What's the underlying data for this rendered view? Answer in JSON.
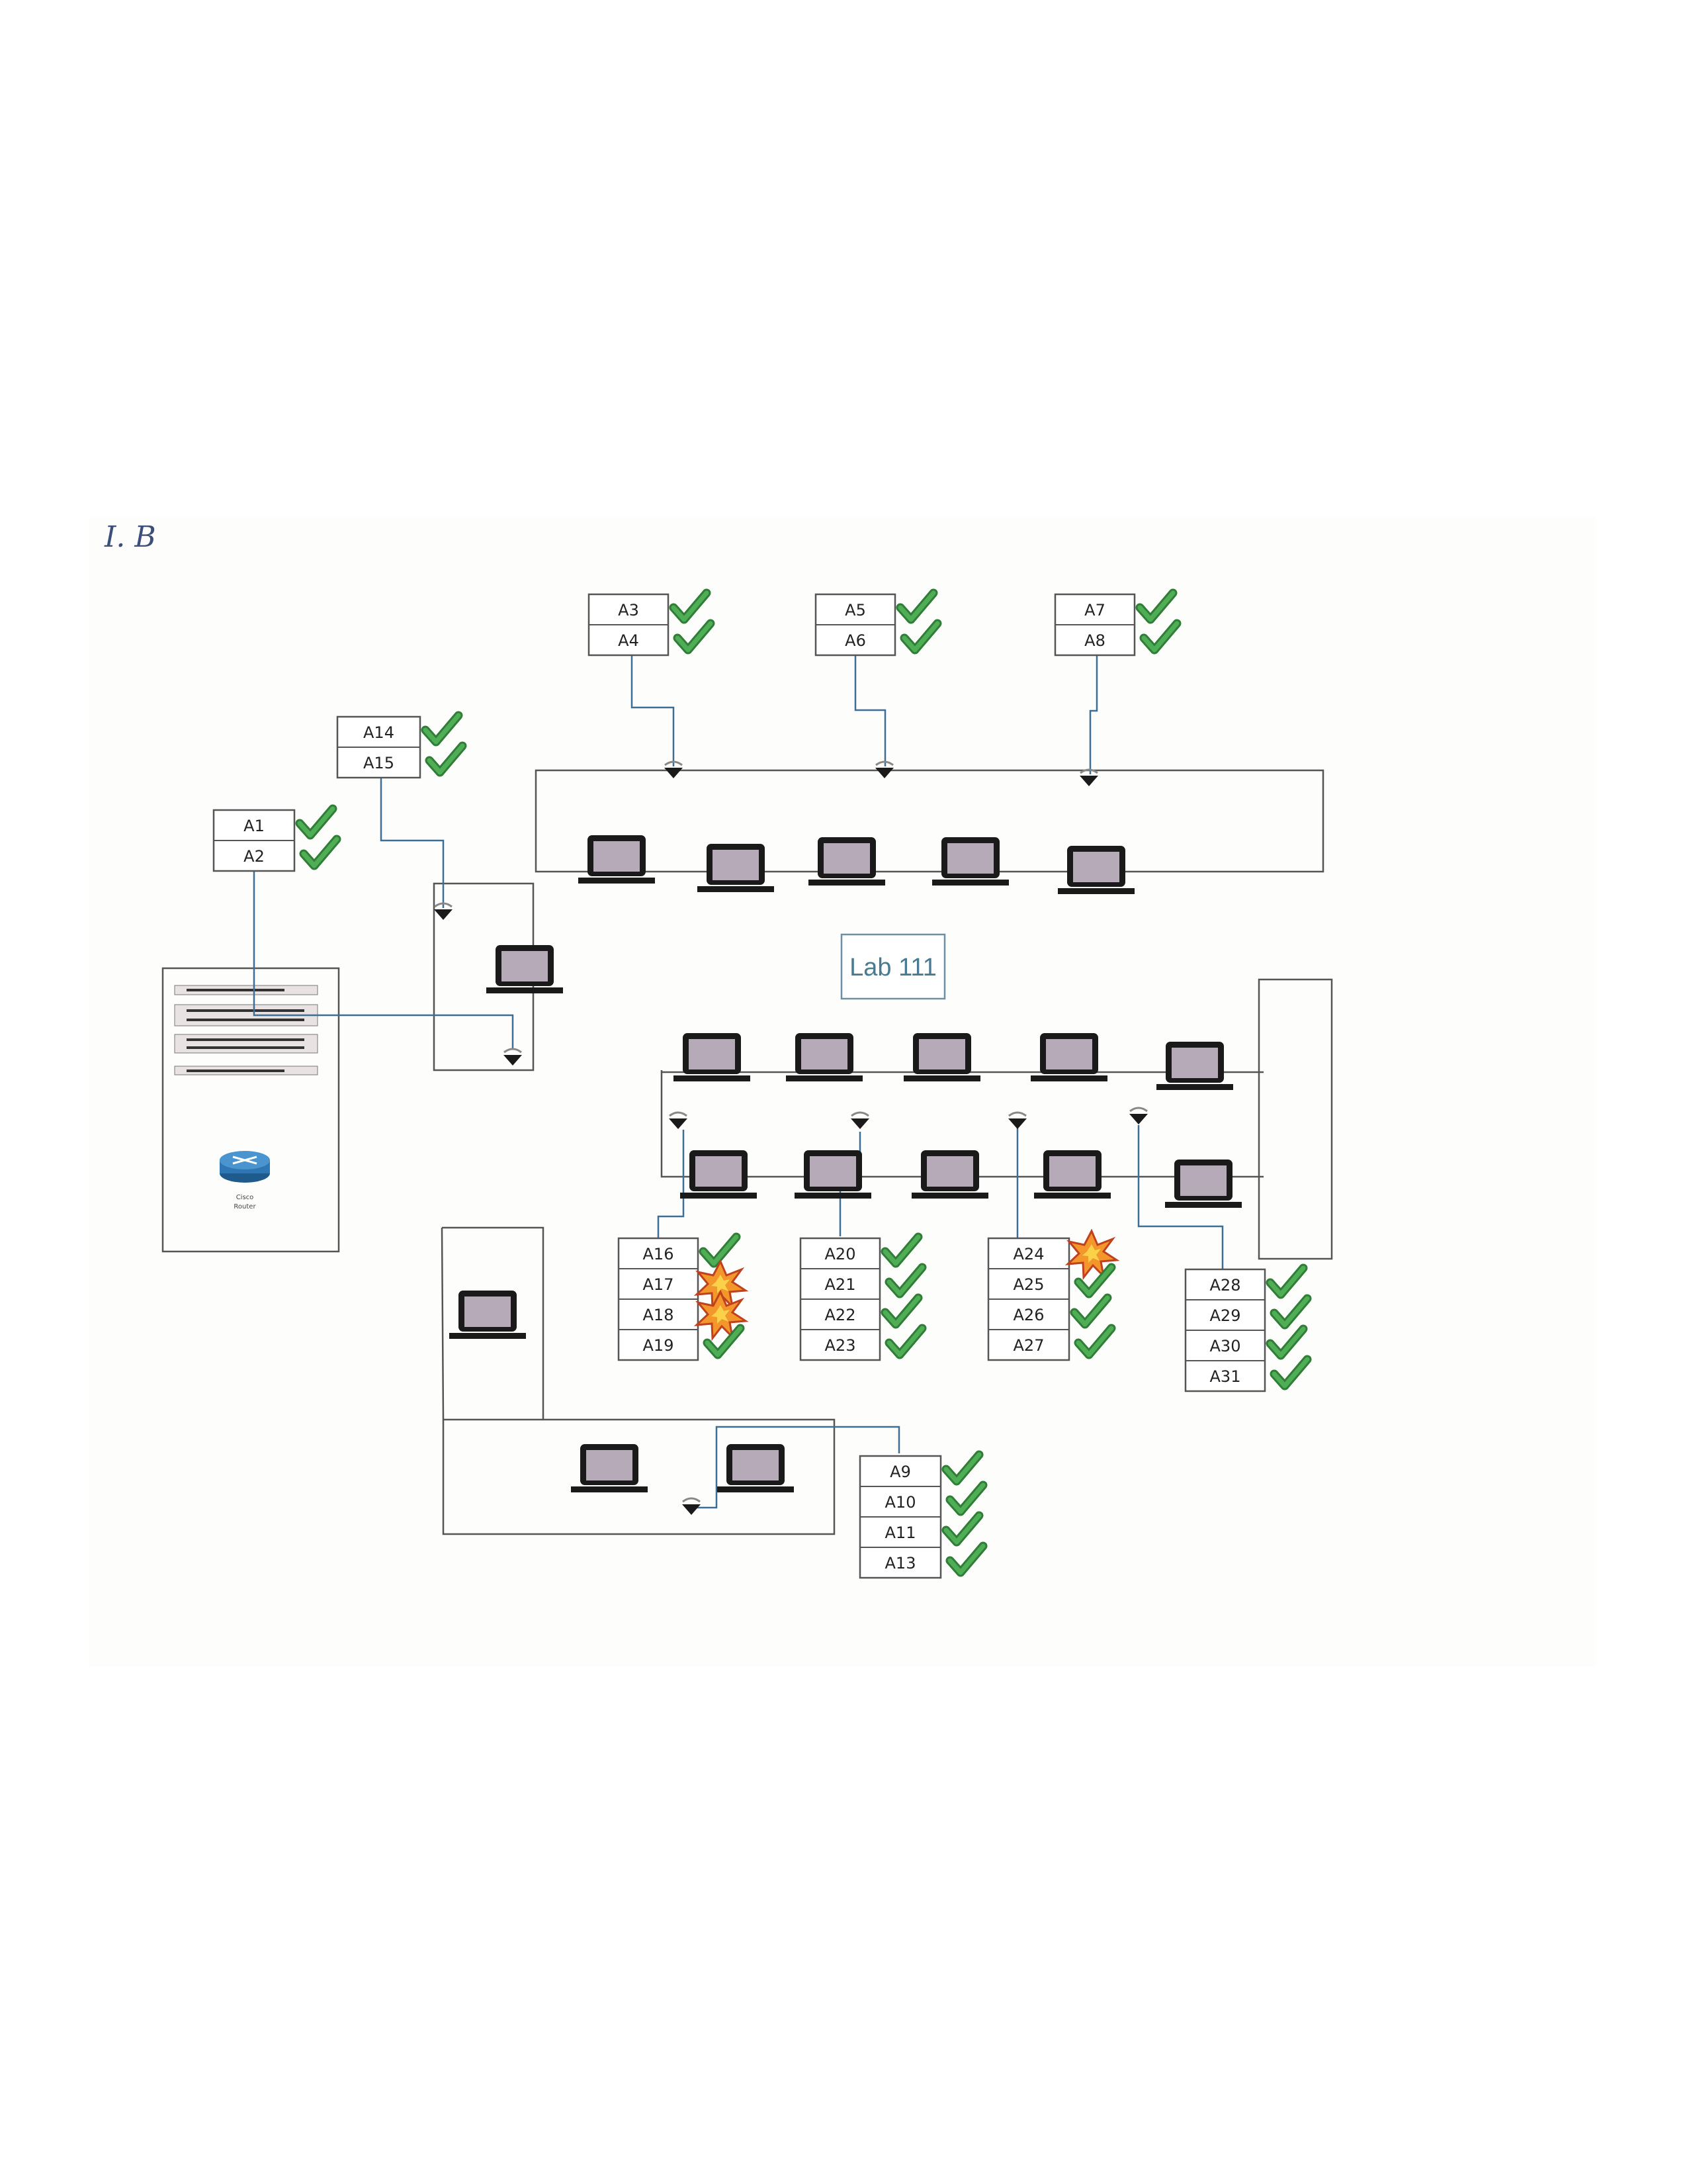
{
  "note": "I. B",
  "room_label": "Lab 111",
  "router_label": [
    "Cisco",
    "Router"
  ],
  "colors": {
    "ok": "#3f9c45",
    "fail": "#f08a24",
    "cable": "#3f6e95",
    "line": "#555555"
  },
  "port_groups": [
    {
      "id": "g-a3",
      "ports": [
        {
          "label": "A3",
          "status": "ok"
        },
        {
          "label": "A4",
          "status": "ok"
        }
      ]
    },
    {
      "id": "g-a5",
      "ports": [
        {
          "label": "A5",
          "status": "ok"
        },
        {
          "label": "A6",
          "status": "ok"
        }
      ]
    },
    {
      "id": "g-a7",
      "ports": [
        {
          "label": "A7",
          "status": "ok"
        },
        {
          "label": "A8",
          "status": "ok"
        }
      ]
    },
    {
      "id": "g-a14",
      "ports": [
        {
          "label": "A14",
          "status": "ok"
        },
        {
          "label": "A15",
          "status": "ok"
        }
      ]
    },
    {
      "id": "g-a1",
      "ports": [
        {
          "label": "A1",
          "status": "ok"
        },
        {
          "label": "A2",
          "status": "ok"
        }
      ]
    },
    {
      "id": "g-a16",
      "ports": [
        {
          "label": "A16",
          "status": "ok"
        },
        {
          "label": "A17",
          "status": "fail"
        },
        {
          "label": "A18",
          "status": "fail"
        },
        {
          "label": "A19",
          "status": "ok"
        }
      ]
    },
    {
      "id": "g-a20",
      "ports": [
        {
          "label": "A20",
          "status": "ok"
        },
        {
          "label": "A21",
          "status": "ok"
        },
        {
          "label": "A22",
          "status": "ok"
        },
        {
          "label": "A23",
          "status": "ok"
        }
      ]
    },
    {
      "id": "g-a24",
      "ports": [
        {
          "label": "A24",
          "status": "fail"
        },
        {
          "label": "A25",
          "status": "ok"
        },
        {
          "label": "A26",
          "status": "ok"
        },
        {
          "label": "A27",
          "status": "ok"
        }
      ]
    },
    {
      "id": "g-a28",
      "ports": [
        {
          "label": "A28",
          "status": "ok"
        },
        {
          "label": "A29",
          "status": "ok"
        },
        {
          "label": "A30",
          "status": "ok"
        },
        {
          "label": "A31",
          "status": "ok"
        }
      ]
    },
    {
      "id": "g-a9",
      "ports": [
        {
          "label": "A9",
          "status": "ok"
        },
        {
          "label": "A10",
          "status": "ok"
        },
        {
          "label": "A11",
          "status": "ok"
        },
        {
          "label": "A13",
          "status": "ok"
        }
      ]
    }
  ]
}
